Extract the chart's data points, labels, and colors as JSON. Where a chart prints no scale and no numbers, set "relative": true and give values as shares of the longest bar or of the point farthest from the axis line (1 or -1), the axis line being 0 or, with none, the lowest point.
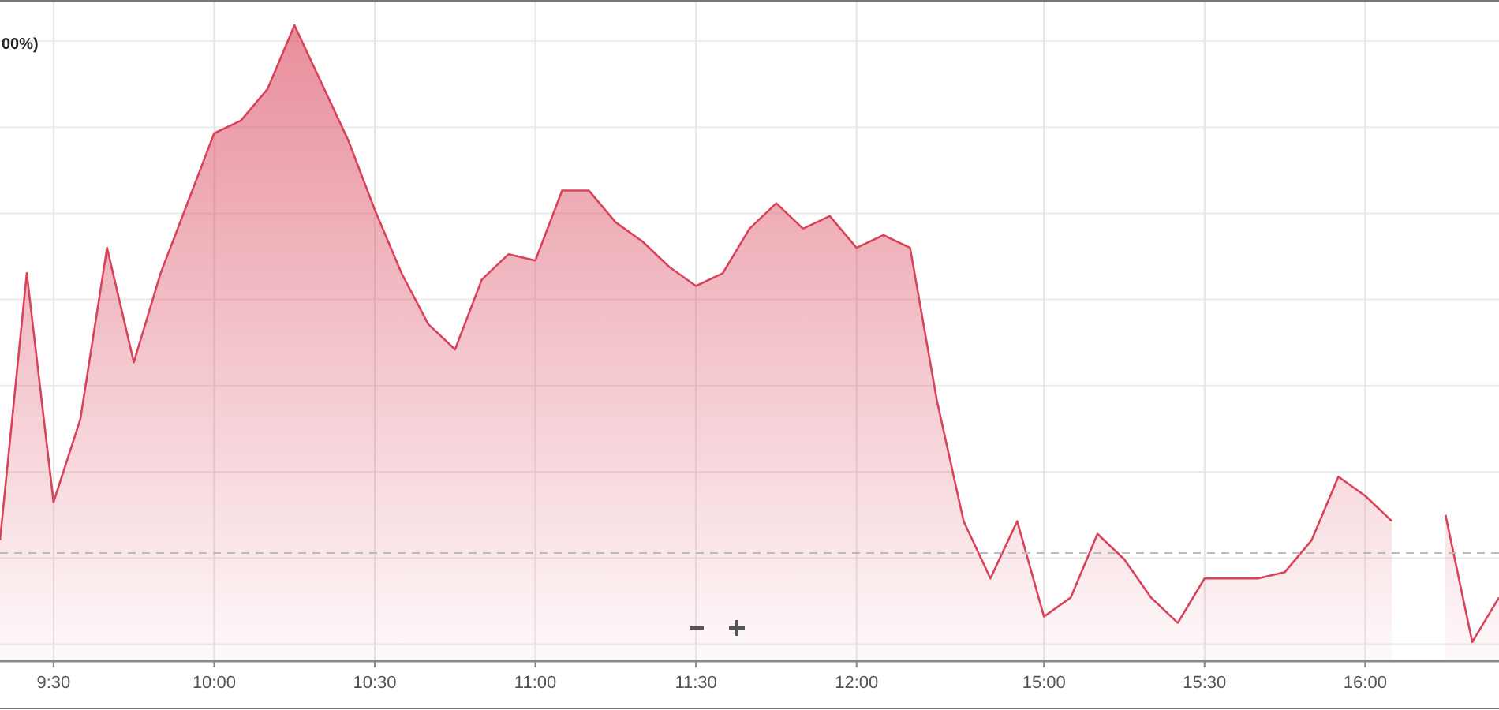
{
  "chart_data": {
    "type": "area",
    "relative": true,
    "categories": [
      null,
      null,
      "9:30",
      null,
      null,
      null,
      null,
      null,
      "10:00",
      null,
      null,
      null,
      null,
      null,
      "10:30",
      null,
      null,
      null,
      null,
      null,
      "11:00",
      null,
      null,
      null,
      null,
      null,
      "11:30",
      null,
      null,
      null,
      null,
      null,
      "12:00",
      null,
      null,
      null,
      null,
      null,
      null,
      "15:00",
      null,
      null,
      null,
      null,
      null,
      "15:30",
      null,
      null,
      null,
      null,
      null,
      "16:00",
      null,
      null,
      null,
      null,
      null
    ],
    "series": [
      {
        "color": "#d9435a",
        "values": [
          0.19,
          0.61,
          0.25,
          0.38,
          0.65,
          0.47,
          0.61,
          0.72,
          0.83,
          0.85,
          0.9,
          1,
          0.91,
          0.82,
          0.71,
          0.61,
          0.53,
          0.49,
          0.6,
          0.64,
          0.63,
          0.74,
          0.74,
          0.69,
          0.66,
          0.62,
          0.59,
          0.61,
          0.68,
          0.72,
          0.68,
          0.7,
          0.65,
          0.67,
          0.65,
          0.41,
          0.22,
          0.13,
          0.22,
          0.07,
          0.1,
          0.2,
          0.16,
          0.1,
          0.06,
          0.13,
          0.13,
          0.13,
          0.14,
          0.19,
          0.29,
          0.26,
          0.22,
          null,
          0.23,
          0.03,
          0.1
        ]
      }
    ],
    "ref_lines": [
      {
        "axis": "y",
        "value": 0.17,
        "color": "#bbbbbb",
        "line_style": "dashed"
      }
    ],
    "annotations": [
      "00%)"
    ],
    "grid": true
  }
}
